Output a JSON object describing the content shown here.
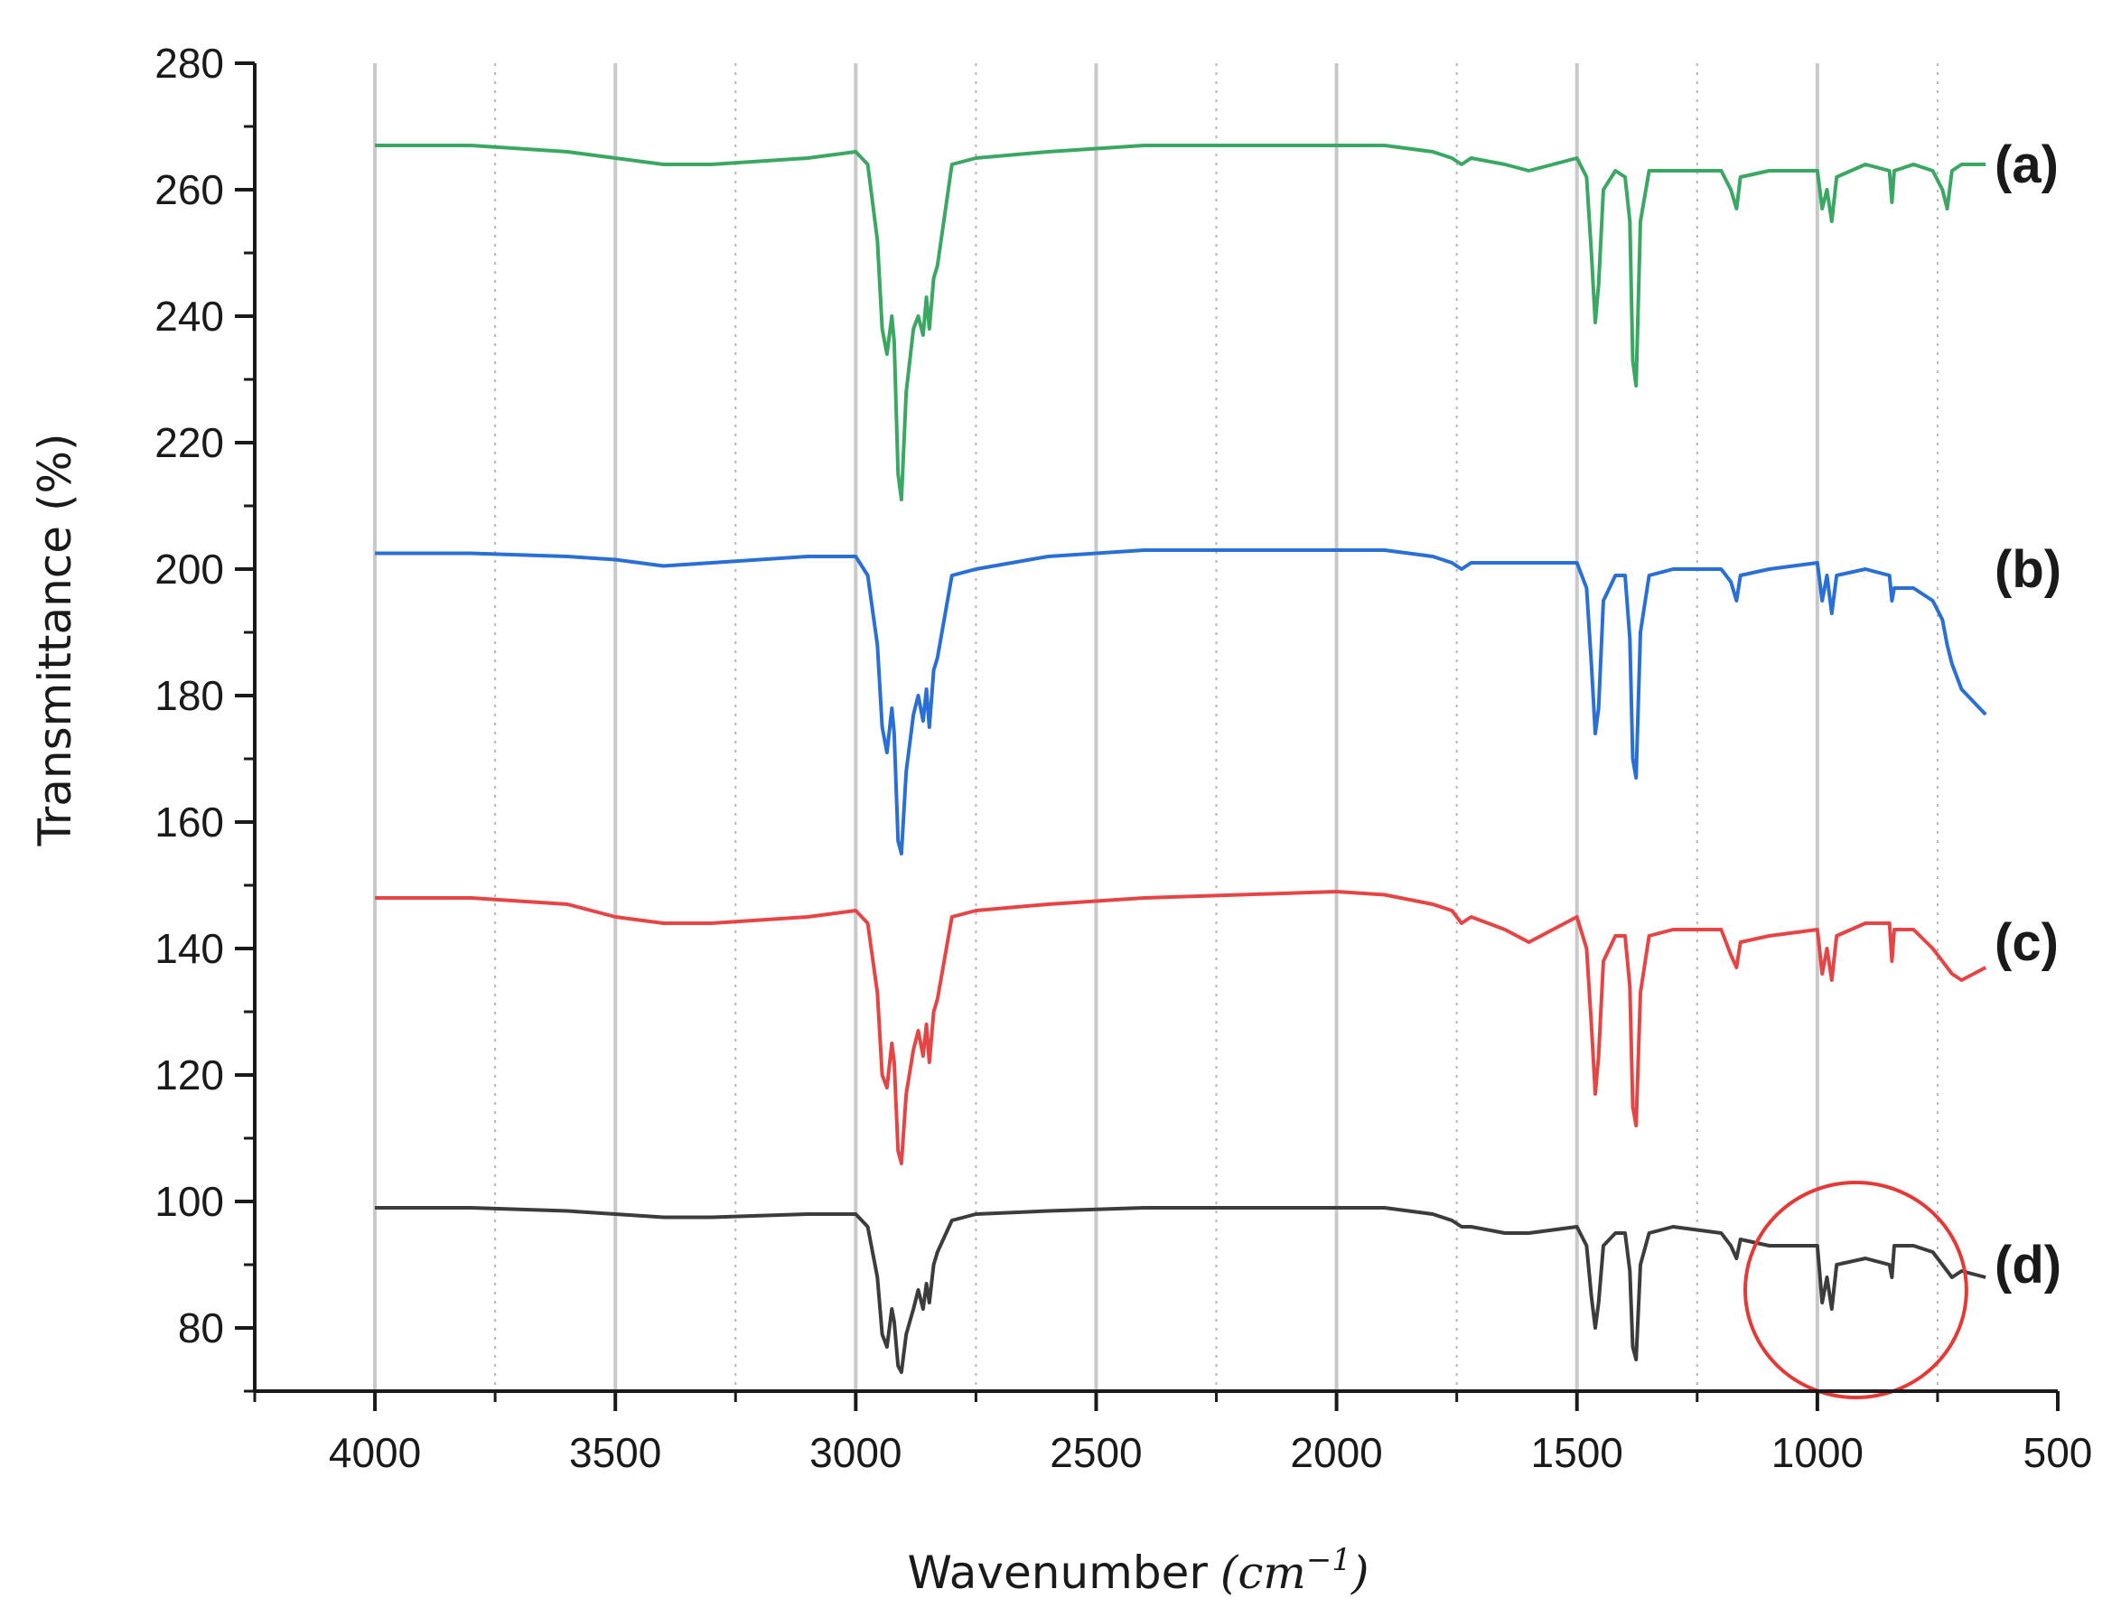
{
  "chart_data": {
    "type": "line",
    "xlabel": "Wavenumber",
    "xlabel_unit_base": "(cm",
    "xlabel_unit_exp": "−1",
    "xlabel_unit_close": ")",
    "ylabel": "Transmittance (%)",
    "xlim": [
      4250,
      500
    ],
    "ylim": [
      70,
      280
    ],
    "x_reversed": true,
    "xticks": [
      {
        "value": 4000,
        "label": "4000"
      },
      {
        "value": 3500,
        "label": "3500"
      },
      {
        "value": 3000,
        "label": "3000"
      },
      {
        "value": 2500,
        "label": "2500"
      },
      {
        "value": 2000,
        "label": "2000"
      },
      {
        "value": 1500,
        "label": "1500"
      },
      {
        "value": 1000,
        "label": "1000"
      },
      {
        "value": 500,
        "label": "500"
      }
    ],
    "yticks": [
      {
        "value": 80,
        "label": "80"
      },
      {
        "value": 100,
        "label": "100"
      },
      {
        "value": 120,
        "label": "120"
      },
      {
        "value": 140,
        "label": "140"
      },
      {
        "value": 160,
        "label": "160"
      },
      {
        "value": 180,
        "label": "180"
      },
      {
        "value": 200,
        "label": "200"
      },
      {
        "value": 220,
        "label": "220"
      },
      {
        "value": 240,
        "label": "240"
      },
      {
        "value": 260,
        "label": "260"
      },
      {
        "value": 280,
        "label": "280"
      }
    ],
    "grid_major_x": [
      4000,
      3500,
      3000,
      2500,
      2000,
      1500,
      1000
    ],
    "grid_minor_x": [
      3750,
      3250,
      2750,
      2250,
      1750,
      1250,
      750
    ],
    "highlight_circle": {
      "center": [
        920,
        86
      ],
      "radius_x": 230,
      "radius_y": 17,
      "color": "#e53935"
    },
    "series": [
      {
        "name": "(a)",
        "color": "#3aa862",
        "label_anchor": [
          650,
          264
        ],
        "x": [
          4000,
          3800,
          3600,
          3500,
          3400,
          3300,
          3100,
          3000,
          2975,
          2955,
          2945,
          2935,
          2925,
          2920,
          2912,
          2905,
          2895,
          2880,
          2870,
          2860,
          2853,
          2847,
          2838,
          2830,
          2800,
          2750,
          2600,
          2400,
          2200,
          2000,
          1900,
          1800,
          1760,
          1740,
          1720,
          1650,
          1600,
          1500,
          1480,
          1470,
          1462,
          1455,
          1445,
          1420,
          1400,
          1390,
          1384,
          1377,
          1368,
          1350,
          1300,
          1200,
          1180,
          1168,
          1160,
          1100,
          1000,
          990,
          980,
          970,
          960,
          900,
          850,
          845,
          840,
          800,
          760,
          740,
          730,
          720,
          700,
          650
        ],
        "y": [
          267,
          267,
          266,
          265,
          264,
          264,
          265,
          266,
          264,
          252,
          238,
          234,
          240,
          236,
          215,
          211,
          228,
          238,
          240,
          237,
          243,
          238,
          246,
          248,
          264,
          265,
          266,
          267,
          267,
          267,
          267,
          266,
          265,
          264,
          265,
          264,
          263,
          265,
          262,
          250,
          239,
          245,
          260,
          263,
          262,
          255,
          233,
          229,
          255,
          263,
          263,
          263,
          260,
          257,
          262,
          263,
          263,
          257,
          260,
          255,
          262,
          264,
          263,
          258,
          263,
          264,
          263,
          260,
          257,
          263,
          264,
          264
        ]
      },
      {
        "name": "(b)",
        "color": "#2a6fd6",
        "label_anchor": [
          650,
          200
        ],
        "x": [
          4000,
          3800,
          3600,
          3500,
          3400,
          3300,
          3100,
          3000,
          2975,
          2955,
          2945,
          2935,
          2925,
          2920,
          2912,
          2905,
          2895,
          2880,
          2870,
          2860,
          2853,
          2847,
          2838,
          2830,
          2800,
          2750,
          2600,
          2400,
          2200,
          2000,
          1900,
          1800,
          1760,
          1740,
          1720,
          1650,
          1600,
          1500,
          1480,
          1470,
          1462,
          1455,
          1445,
          1420,
          1400,
          1390,
          1384,
          1377,
          1368,
          1350,
          1300,
          1200,
          1180,
          1168,
          1160,
          1100,
          1000,
          990,
          980,
          970,
          960,
          900,
          850,
          845,
          840,
          800,
          760,
          740,
          730,
          720,
          700,
          650
        ],
        "y": [
          202.5,
          202.5,
          202,
          201.5,
          200.5,
          201,
          202,
          202,
          199,
          188,
          175,
          171,
          178,
          174,
          157,
          155,
          168,
          177,
          180,
          176,
          181,
          175,
          184,
          186,
          199,
          200,
          202,
          203,
          203,
          203,
          203,
          202,
          201,
          200,
          201,
          201,
          201,
          201,
          197,
          185,
          174,
          178,
          195,
          199,
          199,
          189,
          170,
          167,
          190,
          199,
          200,
          200,
          198,
          195,
          199,
          200,
          201,
          195,
          199,
          193,
          199,
          200,
          199,
          195,
          197,
          197,
          195,
          192,
          188,
          185,
          181,
          177
        ]
      },
      {
        "name": "(c)",
        "color": "#e64545",
        "label_anchor": [
          650,
          141
        ],
        "x": [
          4000,
          3800,
          3600,
          3500,
          3400,
          3300,
          3100,
          3000,
          2975,
          2955,
          2945,
          2935,
          2925,
          2920,
          2912,
          2905,
          2895,
          2880,
          2870,
          2860,
          2853,
          2847,
          2838,
          2830,
          2800,
          2750,
          2600,
          2400,
          2200,
          2000,
          1900,
          1800,
          1760,
          1740,
          1720,
          1650,
          1600,
          1500,
          1480,
          1470,
          1462,
          1455,
          1445,
          1420,
          1400,
          1390,
          1384,
          1377,
          1368,
          1350,
          1300,
          1200,
          1180,
          1168,
          1160,
          1100,
          1000,
          990,
          980,
          970,
          960,
          900,
          850,
          845,
          840,
          800,
          760,
          740,
          730,
          720,
          700,
          650
        ],
        "y": [
          148,
          148,
          147,
          145,
          144,
          144,
          145,
          146,
          144,
          133,
          120,
          118,
          125,
          122,
          108,
          106,
          117,
          124,
          127,
          123,
          128,
          122,
          130,
          132,
          145,
          146,
          147,
          148,
          148.5,
          149,
          148.5,
          147,
          146,
          144,
          145,
          143,
          141,
          145,
          140,
          128,
          117,
          123,
          138,
          142,
          142,
          134,
          115,
          112,
          133,
          142,
          143,
          143,
          139,
          137,
          141,
          142,
          143,
          136,
          140,
          135,
          142,
          144,
          144,
          138,
          143,
          143,
          140,
          138,
          137,
          136,
          135,
          137
        ]
      },
      {
        "name": "(d)",
        "color": "#3c3c3c",
        "label_anchor": [
          650,
          90
        ],
        "x": [
          4000,
          3800,
          3600,
          3500,
          3400,
          3300,
          3100,
          3000,
          2975,
          2955,
          2945,
          2935,
          2925,
          2920,
          2912,
          2905,
          2895,
          2880,
          2870,
          2860,
          2853,
          2847,
          2838,
          2830,
          2800,
          2750,
          2600,
          2400,
          2200,
          2000,
          1900,
          1800,
          1760,
          1740,
          1720,
          1650,
          1600,
          1500,
          1480,
          1470,
          1462,
          1455,
          1445,
          1420,
          1400,
          1390,
          1384,
          1377,
          1368,
          1350,
          1300,
          1200,
          1180,
          1168,
          1160,
          1100,
          1000,
          990,
          980,
          970,
          960,
          900,
          850,
          845,
          840,
          800,
          760,
          740,
          730,
          720,
          700,
          650
        ],
        "y": [
          99,
          99,
          98.5,
          98,
          97.5,
          97.5,
          98,
          98,
          96,
          88,
          79,
          77,
          83,
          81,
          74,
          73,
          79,
          83,
          86,
          83,
          87,
          84,
          90,
          92,
          97,
          98,
          98.5,
          99,
          99,
          99,
          99,
          98,
          97,
          96,
          96,
          95,
          95,
          96,
          93,
          85,
          80,
          84,
          93,
          95,
          95,
          89,
          77,
          75,
          90,
          95,
          96,
          95,
          93,
          91,
          94,
          93,
          93,
          84,
          88,
          83,
          90,
          91,
          90,
          88,
          93,
          93,
          92,
          90,
          89,
          88,
          89,
          88
        ]
      }
    ]
  }
}
